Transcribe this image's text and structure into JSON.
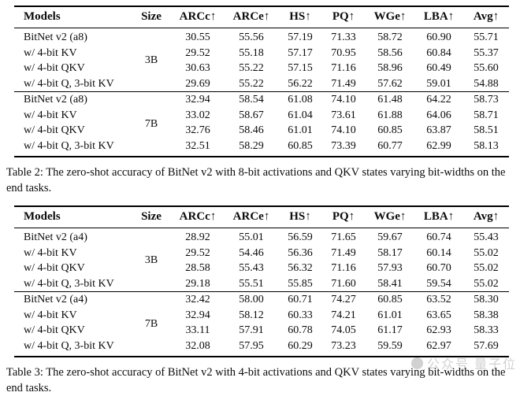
{
  "page": {
    "background": "#ffffff",
    "text_color": "#0b0b0b",
    "rule_color": "#000000"
  },
  "tables": [
    {
      "name": "Table 2",
      "columns": [
        "Models",
        "Size",
        "ARCc↑",
        "ARCe↑",
        "HS↑",
        "PQ↑",
        "WGe↑",
        "LBA↑",
        "Avg↑"
      ],
      "groups": [
        {
          "size": "3B",
          "rows": [
            {
              "model": "BitNet v2 (a8)",
              "values": [
                "30.55",
                "55.56",
                "57.19",
                "71.33",
                "58.72",
                "60.90",
                "55.71"
              ]
            },
            {
              "model": "w/ 4-bit KV",
              "values": [
                "29.52",
                "55.18",
                "57.17",
                "70.95",
                "58.56",
                "60.84",
                "55.37"
              ]
            },
            {
              "model": "w/ 4-bit QKV",
              "values": [
                "30.63",
                "55.22",
                "57.15",
                "71.16",
                "58.96",
                "60.49",
                "55.60"
              ]
            },
            {
              "model": "w/ 4-bit Q, 3-bit KV",
              "values": [
                "29.69",
                "55.22",
                "56.22",
                "71.49",
                "57.62",
                "59.01",
                "54.88"
              ]
            }
          ]
        },
        {
          "size": "7B",
          "rows": [
            {
              "model": "BitNet v2 (a8)",
              "values": [
                "32.94",
                "58.54",
                "61.08",
                "74.10",
                "61.48",
                "64.22",
                "58.73"
              ]
            },
            {
              "model": "w/ 4-bit KV",
              "values": [
                "33.02",
                "58.67",
                "61.04",
                "73.61",
                "61.88",
                "64.06",
                "58.71"
              ]
            },
            {
              "model": "w/ 4-bit QKV",
              "values": [
                "32.76",
                "58.46",
                "61.01",
                "74.10",
                "60.85",
                "63.87",
                "58.51"
              ]
            },
            {
              "model": "w/ 4-bit Q, 3-bit KV",
              "values": [
                "32.51",
                "58.29",
                "60.85",
                "73.39",
                "60.77",
                "62.99",
                "58.13"
              ]
            }
          ]
        }
      ],
      "caption": "Table 2: The zero-shot accuracy of BitNet v2 with 8-bit activations and QKV states varying bit-widths on the end tasks."
    },
    {
      "name": "Table 3",
      "columns": [
        "Models",
        "Size",
        "ARCc↑",
        "ARCe↑",
        "HS↑",
        "PQ↑",
        "WGe↑",
        "LBA↑",
        "Avg↑"
      ],
      "groups": [
        {
          "size": "3B",
          "rows": [
            {
              "model": "BitNet v2 (a4)",
              "values": [
                "28.92",
                "55.01",
                "56.59",
                "71.65",
                "59.67",
                "60.74",
                "55.43"
              ]
            },
            {
              "model": "w/ 4-bit KV",
              "values": [
                "29.52",
                "54.46",
                "56.36",
                "71.49",
                "58.17",
                "60.14",
                "55.02"
              ]
            },
            {
              "model": "w/ 4-bit QKV",
              "values": [
                "28.58",
                "55.43",
                "56.32",
                "71.16",
                "57.93",
                "60.70",
                "55.02"
              ]
            },
            {
              "model": "w/ 4-bit Q, 3-bit KV",
              "values": [
                "29.18",
                "55.51",
                "55.85",
                "71.60",
                "58.41",
                "59.54",
                "55.02"
              ]
            }
          ]
        },
        {
          "size": "7B",
          "rows": [
            {
              "model": "BitNet v2 (a4)",
              "values": [
                "32.42",
                "58.00",
                "60.71",
                "74.27",
                "60.85",
                "63.52",
                "58.30"
              ]
            },
            {
              "model": "w/ 4-bit KV",
              "values": [
                "32.94",
                "58.12",
                "60.33",
                "74.21",
                "61.01",
                "63.65",
                "58.38"
              ]
            },
            {
              "model": "w/ 4-bit QKV",
              "values": [
                "33.11",
                "57.91",
                "60.78",
                "74.05",
                "61.17",
                "62.93",
                "58.33"
              ]
            },
            {
              "model": "w/ 4-bit Q, 3-bit KV",
              "values": [
                "32.08",
                "57.95",
                "60.29",
                "73.23",
                "59.59",
                "62.97",
                "57.69"
              ]
            }
          ]
        }
      ],
      "caption": "Table 3: The zero-shot accuracy of BitNet v2 with 4-bit activations and QKV states varying bit-widths on the end tasks."
    }
  ],
  "watermark": {
    "icon": "circle",
    "text": "公众号 量子位",
    "color": "#9a9a9a"
  }
}
